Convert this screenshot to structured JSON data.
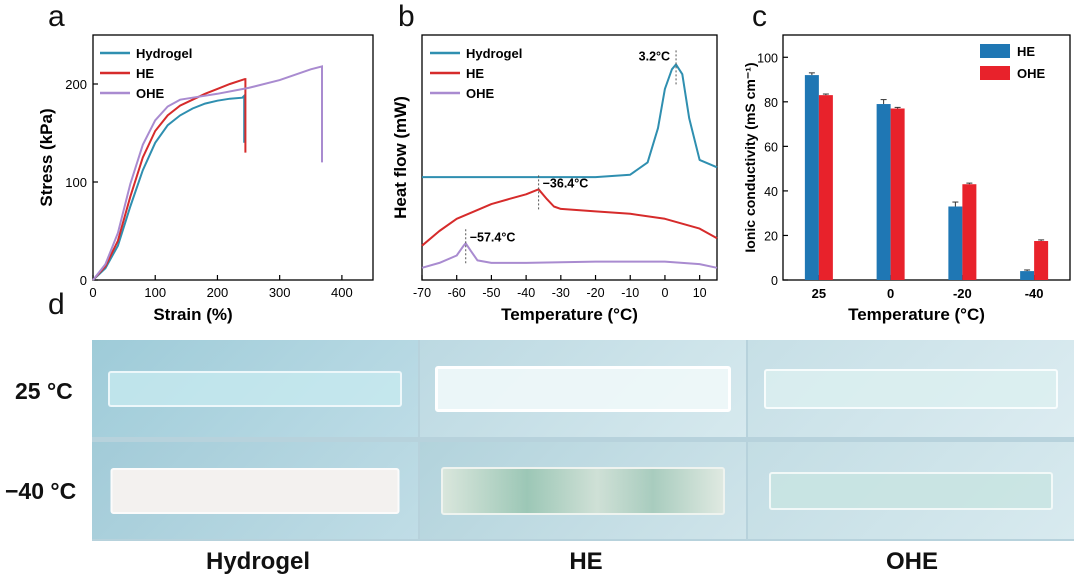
{
  "panels": {
    "a": "a",
    "b": "b",
    "c": "c",
    "d": "d"
  },
  "colors": {
    "hydrogel": "#2f8fb0",
    "he": "#d62b2b",
    "ohe": "#a98bd0",
    "bar_he": "#1f77b4",
    "bar_ohe": "#e8222b"
  },
  "chart_data": [
    {
      "id": "a",
      "type": "line",
      "xlabel": "Strain (%)",
      "ylabel": "Stress (kPa)",
      "xlim": [
        0,
        450
      ],
      "ylim": [
        0,
        250
      ],
      "xticks": [
        0,
        100,
        200,
        300,
        400
      ],
      "yticks": [
        0,
        100,
        200
      ],
      "legend": "top-left",
      "series": [
        {
          "name": "Hydrogel",
          "color": "#2f8fb0",
          "x": [
            0,
            20,
            40,
            60,
            80,
            100,
            120,
            140,
            160,
            180,
            200,
            220,
            240,
            243,
            243
          ],
          "y": [
            0,
            12,
            35,
            75,
            112,
            140,
            158,
            168,
            175,
            180,
            183,
            185,
            186,
            188,
            140
          ]
        },
        {
          "name": "HE",
          "color": "#d62b2b",
          "x": [
            0,
            20,
            40,
            60,
            80,
            100,
            120,
            140,
            160,
            180,
            200,
            220,
            244,
            245,
            245
          ],
          "y": [
            0,
            14,
            40,
            85,
            125,
            152,
            168,
            178,
            184,
            190,
            195,
            200,
            205,
            205,
            130
          ]
        },
        {
          "name": "OHE",
          "color": "#a98bd0",
          "x": [
            0,
            20,
            40,
            60,
            80,
            100,
            120,
            140,
            160,
            200,
            250,
            300,
            350,
            368,
            368
          ],
          "y": [
            0,
            16,
            48,
            98,
            138,
            163,
            177,
            184,
            186,
            190,
            196,
            204,
            215,
            218,
            120
          ]
        }
      ]
    },
    {
      "id": "b",
      "type": "line",
      "xlabel": "Temperature (°C)",
      "ylabel": "Heat flow (mW)",
      "xlim": [
        -70,
        15
      ],
      "xticks": [
        -70,
        -60,
        -50,
        -40,
        -30,
        -20,
        -10,
        0,
        10
      ],
      "legend": "top-left",
      "series": [
        {
          "name": "Hydrogel",
          "color": "#2f8fb0",
          "x": [
            -70,
            -40,
            -20,
            -10,
            -5,
            -2,
            0,
            2,
            3.2,
            5,
            7,
            10,
            15
          ],
          "y": [
            0.42,
            0.42,
            0.42,
            0.43,
            0.48,
            0.62,
            0.78,
            0.86,
            0.88,
            0.84,
            0.66,
            0.49,
            0.46
          ]
        },
        {
          "name": "HE",
          "color": "#d62b2b",
          "x": [
            -70,
            -65,
            -60,
            -55,
            -50,
            -45,
            -40,
            -36.4,
            -34,
            -32,
            -30,
            -20,
            -10,
            0,
            10,
            15
          ],
          "y": [
            0.14,
            0.2,
            0.25,
            0.28,
            0.31,
            0.33,
            0.35,
            0.37,
            0.33,
            0.3,
            0.29,
            0.28,
            0.27,
            0.25,
            0.21,
            0.17
          ]
        },
        {
          "name": "OHE",
          "color": "#a98bd0",
          "x": [
            -70,
            -65,
            -60,
            -58,
            -57.4,
            -56,
            -54,
            -50,
            -40,
            -20,
            0,
            10,
            15
          ],
          "y": [
            0.05,
            0.07,
            0.1,
            0.14,
            0.15,
            0.12,
            0.08,
            0.07,
            0.07,
            0.075,
            0.075,
            0.065,
            0.05
          ]
        }
      ],
      "annotations": [
        {
          "text": "3.2°C",
          "x": 3.2,
          "y": 0.88
        },
        {
          "text": "−36.4°C",
          "x": -36.4,
          "y": 0.37
        },
        {
          "text": "−57.4°C",
          "x": -57.4,
          "y": 0.15
        }
      ]
    },
    {
      "id": "c",
      "type": "bar",
      "xlabel": "Temperature (°C)",
      "ylabel": "Ionic conductivity (mS cm⁻¹)",
      "ylim": [
        0,
        110
      ],
      "yticks": [
        0,
        20,
        40,
        60,
        80,
        100
      ],
      "categories": [
        "25",
        "0",
        "-20",
        "-40"
      ],
      "legend": "top-right",
      "series": [
        {
          "name": "HE",
          "color": "#1f77b4",
          "values": [
            92,
            79,
            33,
            4
          ],
          "errors": [
            1,
            2,
            2,
            0.5
          ]
        },
        {
          "name": "OHE",
          "color": "#e8222b",
          "values": [
            83,
            77,
            43,
            17.5
          ],
          "errors": [
            0.5,
            0.5,
            0.5,
            0.5
          ]
        }
      ]
    }
  ],
  "photos": {
    "row_labels": [
      "25 °C",
      "−40 °C"
    ],
    "col_labels": [
      "Hydrogel",
      "HE",
      "OHE"
    ]
  }
}
